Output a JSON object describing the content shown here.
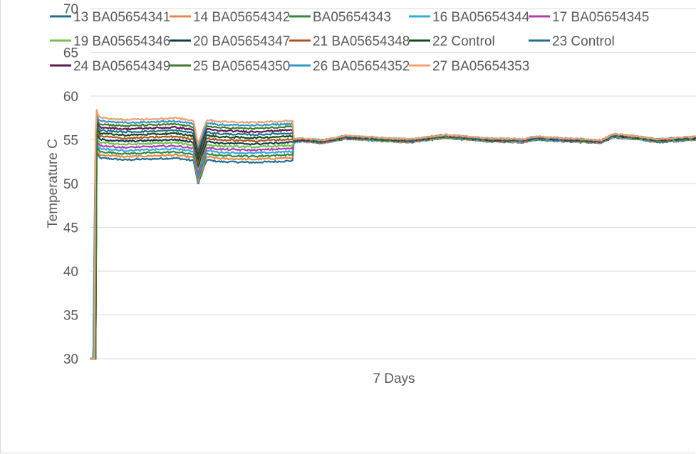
{
  "chart_data": {
    "type": "line",
    "title": "",
    "xlabel": "7 Days",
    "ylabel": "Temperature C",
    "ylim": [
      30,
      70
    ],
    "yticks": [
      30,
      35,
      40,
      45,
      50,
      55,
      60,
      65,
      70
    ],
    "grid": "horizontal",
    "legend_position": "top",
    "x_unit": "days",
    "x_range": [
      0,
      7
    ],
    "series": [
      {
        "name": "13 BA05654341",
        "color": "#1f6f94"
      },
      {
        "name": "14 BA05654342",
        "color": "#e58a4e"
      },
      {
        "name": "BA05654343",
        "color": "#2e8a3a"
      },
      {
        "name": "16 BA05654344",
        "color": "#35a8de"
      },
      {
        "name": "17 BA05654345",
        "color": "#b23db5"
      },
      {
        "name": "19 BA05654346",
        "color": "#6fc24b"
      },
      {
        "name": "20 BA05654347",
        "color": "#123a4a"
      },
      {
        "name": "21 BA05654348",
        "color": "#b0521b"
      },
      {
        "name": "22 Control",
        "color": "#0f4a1a"
      },
      {
        "name": "23 Control",
        "color": "#1e6e8e"
      },
      {
        "name": "24 BA05654349",
        "color": "#5a1a4e"
      },
      {
        "name": "25 BA05654350",
        "color": "#3f7a2a"
      },
      {
        "name": "26 BA05654352",
        "color": "#2f98c8"
      },
      {
        "name": "27 BA05654353",
        "color": "#f0a070"
      }
    ],
    "trend": {
      "x": [
        0,
        0.04,
        0.07,
        0.08,
        0.09,
        0.12,
        0.15,
        0.4,
        1.0,
        1.2,
        1.25,
        1.35,
        1.5,
        1.9,
        2.35,
        2.45,
        2.7,
        2.95,
        3.3,
        3.45,
        3.7,
        4.1,
        4.25,
        4.6,
        5.0,
        5.15,
        5.5,
        5.9,
        6.05,
        6.35,
        6.55,
        7.0
      ],
      "y": [
        30,
        30,
        55.8,
        56.2,
        55.6,
        55.2,
        55.2,
        55.0,
        55.2,
        54.9,
        52.2,
        55.0,
        54.8,
        54.7,
        54.9,
        55.0,
        54.8,
        55.3,
        55.1,
        55.0,
        54.9,
        55.4,
        55.3,
        55.0,
        54.9,
        55.2,
        55.0,
        54.8,
        55.5,
        55.2,
        54.9,
        55.2
      ]
    },
    "early_spread_until_day": 2.35
  }
}
